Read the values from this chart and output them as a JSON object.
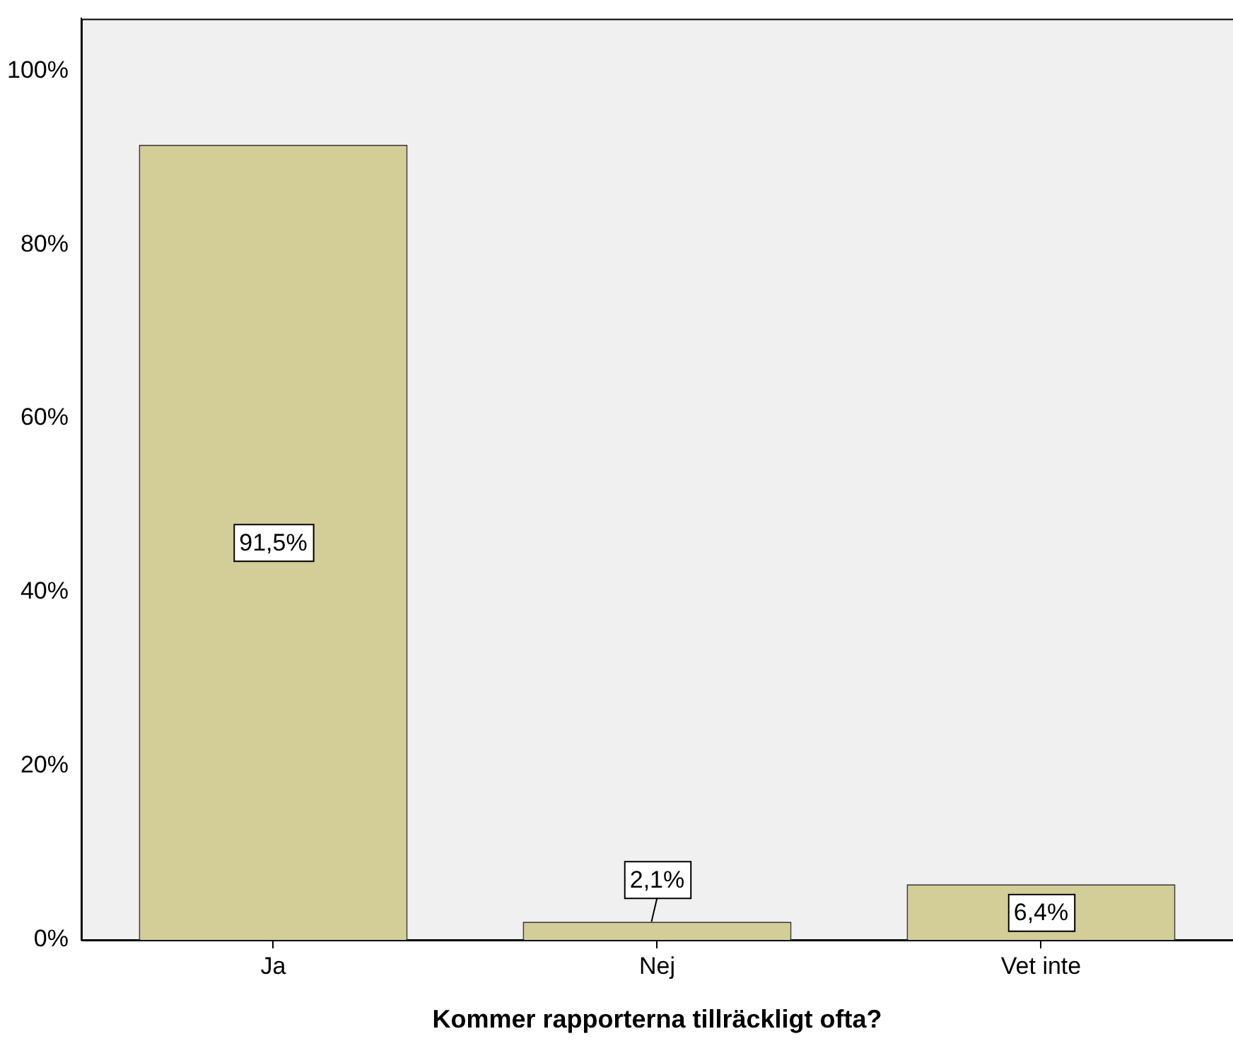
{
  "chart_data": {
    "type": "bar",
    "xlabel": "Kommer rapporterna tillräckligt ofta?",
    "categories": [
      "Ja",
      "Nej",
      "Vet inte"
    ],
    "values": [
      91.5,
      2.1,
      6.4
    ],
    "value_labels": [
      "91,5%",
      "2,1%",
      "6,4%"
    ],
    "color": "#d3ce97",
    "ylim": [
      0,
      106
    ],
    "yticks": [
      {
        "value": 0,
        "label": "0%"
      },
      {
        "value": 20,
        "label": "20%"
      },
      {
        "value": 40,
        "label": "40%"
      },
      {
        "value": 60,
        "label": "60%"
      },
      {
        "value": 80,
        "label": "80%"
      },
      {
        "value": 100,
        "label": "100%"
      }
    ],
    "grid": false,
    "legend": false
  }
}
